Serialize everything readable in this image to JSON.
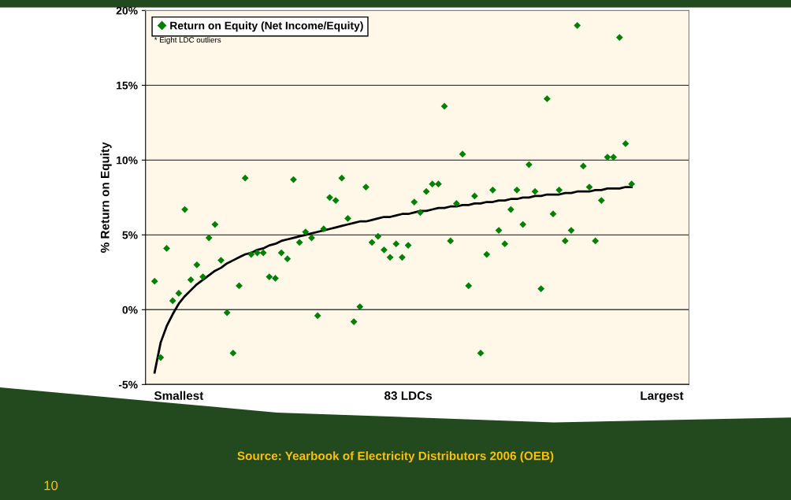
{
  "chart_data": {
    "type": "scatter",
    "ylabel": "% Return on Equity",
    "categories": [
      null,
      null,
      null,
      null,
      null,
      "Smallest",
      null,
      null,
      null,
      null,
      null,
      null,
      null,
      null,
      null,
      null,
      null,
      null,
      null,
      null,
      null,
      null,
      null,
      null,
      null,
      null,
      null,
      null,
      null,
      null,
      null,
      null,
      null,
      null,
      null,
      null,
      null,
      null,
      null,
      null,
      null,
      null,
      null,
      "83 LDCs",
      null,
      null,
      null,
      null,
      null,
      null,
      null,
      null,
      null,
      null,
      null,
      null,
      null,
      null,
      null,
      null,
      null,
      null,
      null,
      null,
      null,
      null,
      null,
      null,
      null,
      null,
      null,
      null,
      null,
      null,
      null,
      null,
      null,
      null,
      null,
      null,
      null,
      null,
      null,
      null,
      null,
      "Largest",
      null,
      null,
      null,
      null
    ],
    "ylim": [
      -5,
      20
    ],
    "yticks": [
      {
        "value": -5,
        "label": "-5%"
      },
      {
        "value": 0,
        "label": "0%"
      },
      {
        "value": 5,
        "label": "5%"
      },
      {
        "value": 10,
        "label": "10%"
      },
      {
        "value": 15,
        "label": "15%"
      },
      {
        "value": 20,
        "label": "20%"
      }
    ],
    "grid": "y",
    "legend": "top left",
    "marker": "diamond",
    "annotations": [
      "* Eight LDC outliers",
      "Source: Yearbook of Electricity Distributors 2006 (OEB)",
      "10"
    ],
    "series": [
      {
        "name": "Return on Equity (Net Income/Equity)",
        "color": "#008000",
        "values": [
          null,
          1.9,
          -3.2,
          4.1,
          0.6,
          1.1,
          6.7,
          2.0,
          3.0,
          2.2,
          4.8,
          5.7,
          3.3,
          -0.2,
          -2.9,
          1.6,
          8.8,
          3.7,
          3.8,
          3.8,
          2.2,
          2.1,
          3.8,
          3.4,
          8.7,
          4.5,
          5.2,
          4.8,
          -0.4,
          5.4,
          7.5,
          7.3,
          8.8,
          6.1,
          -0.8,
          0.2,
          8.2,
          4.5,
          4.9,
          4.0,
          3.5,
          4.4,
          3.5,
          4.3,
          7.2,
          6.5,
          7.9,
          8.4,
          8.4,
          13.6,
          4.6,
          7.1,
          10.4,
          1.6,
          7.6,
          -2.9,
          3.7,
          8.0,
          5.3,
          4.4,
          6.7,
          8.0,
          5.7,
          9.7,
          7.9,
          1.4,
          14.1,
          6.4,
          8.0,
          4.6,
          5.3,
          19.0,
          9.6,
          8.2,
          4.6,
          7.3,
          10.2,
          10.2,
          18.2,
          11.1,
          8.4,
          null,
          null,
          null,
          null,
          null,
          null,
          null,
          null,
          null
        ]
      },
      {
        "type": "line",
        "marker": "none",
        "color": "#000000",
        "values": [
          null,
          -4.2,
          -2.2,
          -1.1,
          -0.3,
          0.4,
          0.9,
          1.3,
          1.7,
          2.0,
          2.3,
          2.6,
          2.8,
          3.1,
          3.3,
          3.5,
          3.7,
          3.8,
          4.0,
          4.1,
          4.3,
          4.4,
          4.6,
          4.7,
          4.8,
          4.9,
          5.0,
          5.1,
          5.2,
          5.3,
          5.4,
          5.5,
          5.6,
          5.7,
          5.8,
          5.9,
          5.9,
          6.0,
          6.1,
          6.2,
          6.2,
          6.3,
          6.4,
          6.4,
          6.5,
          6.6,
          6.6,
          6.7,
          6.8,
          6.8,
          6.9,
          6.9,
          7.0,
          7.0,
          7.1,
          7.1,
          7.2,
          7.2,
          7.3,
          7.3,
          7.4,
          7.4,
          7.5,
          7.5,
          7.6,
          7.6,
          7.7,
          7.7,
          7.7,
          7.8,
          7.8,
          7.9,
          7.9,
          7.9,
          8.0,
          8.0,
          8.1,
          8.1,
          8.1,
          8.2,
          8.2,
          null,
          null,
          null,
          null,
          null,
          null,
          null,
          null,
          null
        ]
      }
    ]
  }
}
